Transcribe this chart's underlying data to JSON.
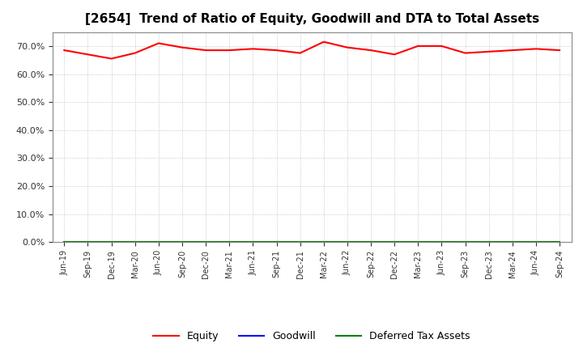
{
  "title": "[2654]  Trend of Ratio of Equity, Goodwill and DTA to Total Assets",
  "x_labels": [
    "Jun-19",
    "Sep-19",
    "Dec-19",
    "Mar-20",
    "Jun-20",
    "Sep-20",
    "Dec-20",
    "Mar-21",
    "Jun-21",
    "Sep-21",
    "Dec-21",
    "Mar-22",
    "Jun-22",
    "Sep-22",
    "Dec-22",
    "Mar-23",
    "Jun-23",
    "Sep-23",
    "Dec-23",
    "Mar-24",
    "Jun-24",
    "Sep-24"
  ],
  "equity": [
    68.5,
    67.0,
    65.5,
    67.5,
    71.0,
    69.5,
    68.5,
    68.5,
    69.0,
    68.5,
    67.5,
    71.5,
    69.5,
    68.5,
    67.0,
    70.0,
    70.0,
    67.5,
    68.0,
    68.5,
    69.0,
    68.5
  ],
  "goodwill": [
    0.0,
    0.0,
    0.0,
    0.0,
    0.0,
    0.0,
    0.0,
    0.0,
    0.0,
    0.0,
    0.0,
    0.0,
    0.0,
    0.0,
    0.0,
    0.0,
    0.0,
    0.0,
    0.0,
    0.0,
    0.0,
    0.0
  ],
  "dta": [
    0.0,
    0.0,
    0.0,
    0.0,
    0.0,
    0.0,
    0.0,
    0.0,
    0.0,
    0.0,
    0.0,
    0.0,
    0.0,
    0.0,
    0.0,
    0.0,
    0.0,
    0.0,
    0.0,
    0.0,
    0.0,
    0.0
  ],
  "equity_color": "#ff0000",
  "goodwill_color": "#0000ff",
  "dta_color": "#008000",
  "ylim": [
    0,
    75
  ],
  "yticks": [
    0.0,
    10.0,
    20.0,
    30.0,
    40.0,
    50.0,
    60.0,
    70.0
  ],
  "background_color": "#ffffff",
  "grid_color": "#bbbbbb",
  "title_fontsize": 11,
  "legend_labels": [
    "Equity",
    "Goodwill",
    "Deferred Tax Assets"
  ]
}
